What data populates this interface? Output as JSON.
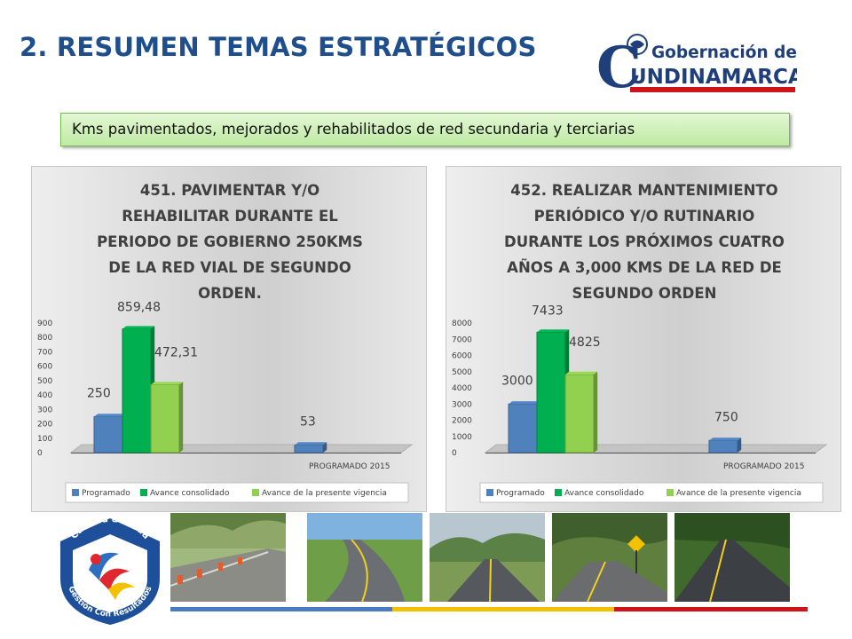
{
  "header": {
    "title": "2. RESUMEN TEMAS ESTRATÉGICOS",
    "logo_lines": [
      "Gobernación de",
      "UNDINAMARCA"
    ],
    "logo_initial": "C"
  },
  "subtitle": "Kms pavimentados, mejorados y rehabilitados de red secundaria y terciarias",
  "colors": {
    "programado": "#4f81bd",
    "avance_consolidado": "#00b050",
    "avance_vigencia": "#92d050",
    "title_blue": "#1f4e8c"
  },
  "chart_data": [
    {
      "type": "bar",
      "title_lines": [
        "451. PAVIMENTAR Y/O",
        "REHABILITAR DURANTE EL",
        "PERIODO DE GOBIERNO 250KMS",
        "DE LA RED VIAL DE SEGUNDO",
        "ORDEN."
      ],
      "categories": [
        "",
        "PROGRAMADO 2015"
      ],
      "series": [
        {
          "name": "Programado",
          "values": [
            250,
            53
          ],
          "labels": [
            "250",
            "53"
          ]
        },
        {
          "name": "Avance consolidado",
          "values": [
            859.48,
            null
          ],
          "labels": [
            "859,48",
            ""
          ]
        },
        {
          "name": "Avance de la presente vigencia",
          "values": [
            472.31,
            null
          ],
          "labels": [
            "472,31",
            ""
          ]
        }
      ],
      "ylim": [
        0,
        900
      ],
      "yticks": [
        0,
        100,
        200,
        300,
        400,
        500,
        600,
        700,
        800,
        900
      ],
      "legend_position": "bottom",
      "grid": false
    },
    {
      "type": "bar",
      "title_lines": [
        "452. REALIZAR MANTENIMIENTO",
        "PERIÓDICO Y/O RUTINARIO",
        "DURANTE LOS PRÓXIMOS CUATRO",
        "AÑOS A 3,000 KMS DE LA RED DE",
        "SEGUNDO ORDEN"
      ],
      "categories": [
        "",
        "PROGRAMADO 2015"
      ],
      "series": [
        {
          "name": "Programado",
          "values": [
            3000,
            750
          ],
          "labels": [
            "3000",
            "750"
          ]
        },
        {
          "name": "Avance consolidado",
          "values": [
            7433,
            null
          ],
          "labels": [
            "7433",
            ""
          ]
        },
        {
          "name": "Avance de la presente vigencia",
          "values": [
            4825,
            null
          ],
          "labels": [
            "4825",
            ""
          ]
        }
      ],
      "ylim": [
        0,
        8000
      ],
      "yticks": [
        0,
        1000,
        2000,
        3000,
        4000,
        5000,
        6000,
        7000,
        8000
      ],
      "legend_position": "bottom",
      "grid": false
    }
  ],
  "footer_logo": {
    "top_text": "Calidad de Vida",
    "bottom_text": "Gestión Con Resultados"
  },
  "photos": [
    {
      "icon": "road-photo-construction"
    },
    {
      "icon": "road-photo-curve"
    },
    {
      "icon": "road-photo-mountain"
    },
    {
      "icon": "road-photo-sign"
    },
    {
      "icon": "road-photo-forest"
    }
  ]
}
